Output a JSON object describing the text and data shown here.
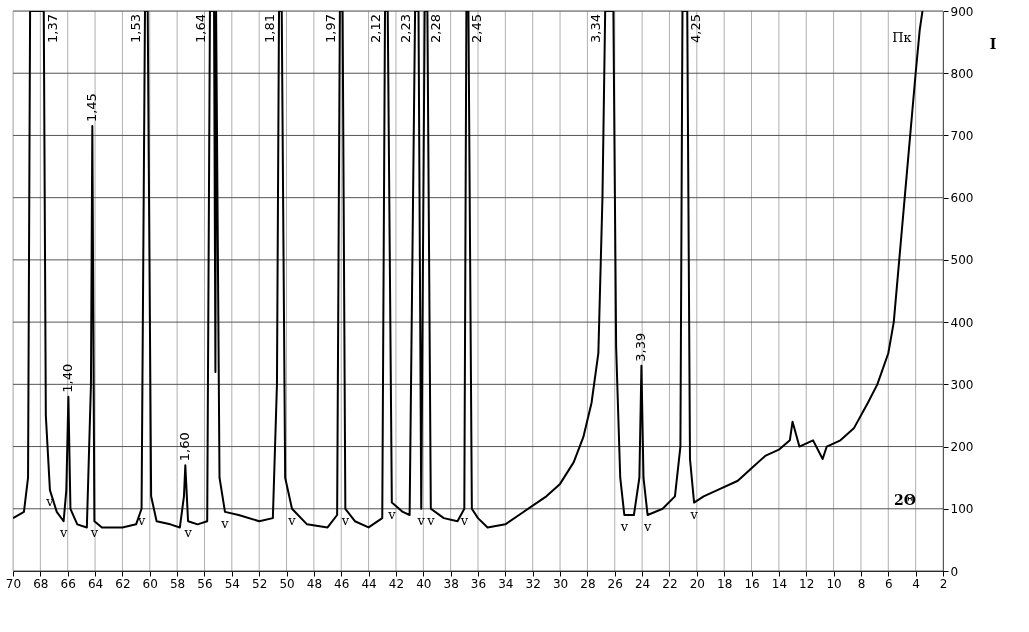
{
  "chart_data": {
    "type": "line",
    "xlabel": "2Θ",
    "ylabel": "I",
    "xlim": [
      70,
      2
    ],
    "ylim": [
      0,
      900
    ],
    "xticks": [
      70,
      68,
      66,
      64,
      62,
      60,
      58,
      56,
      54,
      52,
      50,
      48,
      46,
      44,
      42,
      40,
      38,
      36,
      34,
      32,
      30,
      28,
      26,
      24,
      22,
      20,
      18,
      16,
      14,
      12,
      10,
      8,
      6,
      4,
      2
    ],
    "yticks": [
      0,
      100,
      200,
      300,
      400,
      500,
      600,
      700,
      800,
      900
    ],
    "grid": true,
    "marker": "none",
    "line_style": "solid",
    "series": [
      {
        "color": "#000000",
        "x": [
          70,
          69.2,
          68.9,
          68.75,
          67.75,
          67.6,
          67.3,
          66.8,
          66.3,
          66.1,
          65.95,
          65.8,
          65.3,
          64.6,
          64.3,
          64.2,
          64.05,
          63.5,
          62,
          61,
          60.6,
          60.35,
          60.15,
          59.9,
          59.5,
          58.5,
          57.8,
          57.5,
          57.4,
          57.2,
          56.5,
          55.8,
          55.6,
          55.3,
          55.2,
          55.15,
          54.9,
          54.5,
          53.5,
          52,
          51,
          50.7,
          50.55,
          50.35,
          50.1,
          49.6,
          48.5,
          47,
          46.3,
          46.1,
          45.9,
          45.7,
          45,
          44,
          43,
          42.8,
          42.6,
          42.3,
          41.5,
          41,
          40.6,
          40.35,
          40.15,
          39.9,
          39.7,
          39.45,
          38.5,
          37.5,
          37,
          36.85,
          36.7,
          36.45,
          36,
          35.3,
          34,
          33,
          32,
          31,
          30,
          29,
          28.3,
          27.7,
          27.2,
          26.9,
          26.7,
          26.1,
          25.9,
          25.6,
          25.3,
          24.6,
          24.2,
          24.05,
          23.9,
          23.6,
          22.5,
          21.6,
          21.2,
          21.05,
          20.7,
          20.5,
          20.2,
          19.5,
          18.5,
          17,
          16,
          15,
          14,
          13.2,
          13,
          12.5,
          11.5,
          10.8,
          10.5,
          9.5,
          8.5,
          7.5,
          6.8,
          6,
          5.6,
          5.2,
          4.8,
          4.4,
          4,
          3.7,
          3.5
        ],
        "values": [
          85,
          95,
          150,
          900,
          900,
          250,
          130,
          95,
          80,
          130,
          280,
          100,
          75,
          70,
          300,
          715,
          80,
          70,
          70,
          75,
          100,
          900,
          900,
          120,
          80,
          75,
          70,
          120,
          170,
          80,
          75,
          80,
          900,
          900,
          320,
          900,
          150,
          95,
          90,
          80,
          85,
          300,
          900,
          900,
          150,
          100,
          75,
          70,
          90,
          900,
          900,
          100,
          80,
          70,
          85,
          900,
          900,
          110,
          95,
          90,
          900,
          900,
          100,
          900,
          900,
          100,
          85,
          80,
          100,
          900,
          900,
          100,
          85,
          70,
          75,
          90,
          105,
          120,
          140,
          175,
          215,
          270,
          350,
          600,
          900,
          900,
          360,
          150,
          90,
          90,
          150,
          330,
          150,
          90,
          100,
          120,
          200,
          900,
          900,
          180,
          110,
          120,
          130,
          145,
          165,
          185,
          195,
          210,
          240,
          200,
          210,
          180,
          200,
          210,
          230,
          270,
          300,
          350,
          400,
          500,
          600,
          700,
          800,
          870,
          900
        ]
      }
    ],
    "annotations": [
      {
        "text": "1,37",
        "x": 67.75,
        "y": 900
      },
      {
        "text": "1,40",
        "x": 65.95,
        "y": 280
      },
      {
        "text": "1,45",
        "x": 64.2,
        "y": 715
      },
      {
        "text": "1,53",
        "x": 60.35,
        "y": 900
      },
      {
        "text": "1,60",
        "x": 57.4,
        "y": 170
      },
      {
        "text": "1,64",
        "x": 55.6,
        "y": 900
      },
      {
        "text": "1,81",
        "x": 50.55,
        "y": 900
      },
      {
        "text": "1,97",
        "x": 46.1,
        "y": 900
      },
      {
        "text": "2,12",
        "x": 42.8,
        "y": 900
      },
      {
        "text": "2,23",
        "x": 40.6,
        "y": 900
      },
      {
        "text": "2,28",
        "x": 39.7,
        "y": 900
      },
      {
        "text": "2,45",
        "x": 36.7,
        "y": 900
      },
      {
        "text": "3,34",
        "x": 26.7,
        "y": 900
      },
      {
        "text": "3,39",
        "x": 24.05,
        "y": 330
      },
      {
        "text": "4,25",
        "x": 20.7,
        "y": 900
      },
      {
        "text": "v",
        "x": 67.3,
        "y": 130
      },
      {
        "text": "v",
        "x": 66.3,
        "y": 80
      },
      {
        "text": "v",
        "x": 64.05,
        "y": 80
      },
      {
        "text": "v",
        "x": 60.6,
        "y": 100
      },
      {
        "text": "v",
        "x": 57.2,
        "y": 80
      },
      {
        "text": "v",
        "x": 54.5,
        "y": 95
      },
      {
        "text": "v",
        "x": 49.6,
        "y": 100
      },
      {
        "text": "v",
        "x": 45.7,
        "y": 100
      },
      {
        "text": "v",
        "x": 42.3,
        "y": 110
      },
      {
        "text": "v",
        "x": 40.15,
        "y": 100
      },
      {
        "text": "v",
        "x": 39.45,
        "y": 100
      },
      {
        "text": "v",
        "x": 37,
        "y": 100
      },
      {
        "text": "v",
        "x": 25.3,
        "y": 90
      },
      {
        "text": "v",
        "x": 23.6,
        "y": 90
      },
      {
        "text": "v",
        "x": 20.2,
        "y": 110
      },
      {
        "text": "Пк",
        "x": 3.7,
        "y": 870
      }
    ]
  }
}
